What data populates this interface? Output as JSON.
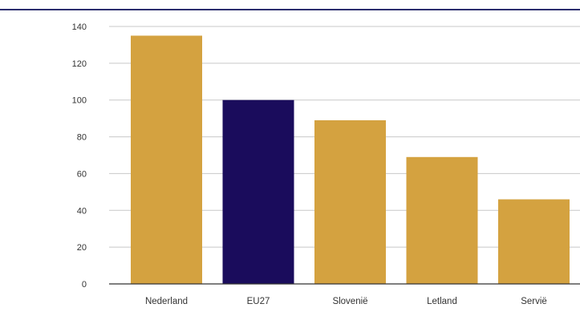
{
  "colors": {
    "top_rule": "#2b2d6e",
    "bar_default": "#d4a240",
    "bar_highlight": "#1a0c5c",
    "grid": "#c8c8c8",
    "axis": "#333333"
  },
  "chart_data": {
    "type": "bar",
    "title": "",
    "xlabel": "",
    "ylabel": "",
    "categories": [
      "Nederland",
      "EU27",
      "Slovenië",
      "Letland",
      "Servië"
    ],
    "values": [
      135,
      100,
      89,
      69,
      46
    ],
    "highlight": [
      "EU27"
    ],
    "ylim": [
      0,
      140
    ],
    "yticks": [
      0,
      20,
      40,
      60,
      80,
      100,
      120,
      140
    ],
    "grid": true,
    "legend": "none"
  }
}
